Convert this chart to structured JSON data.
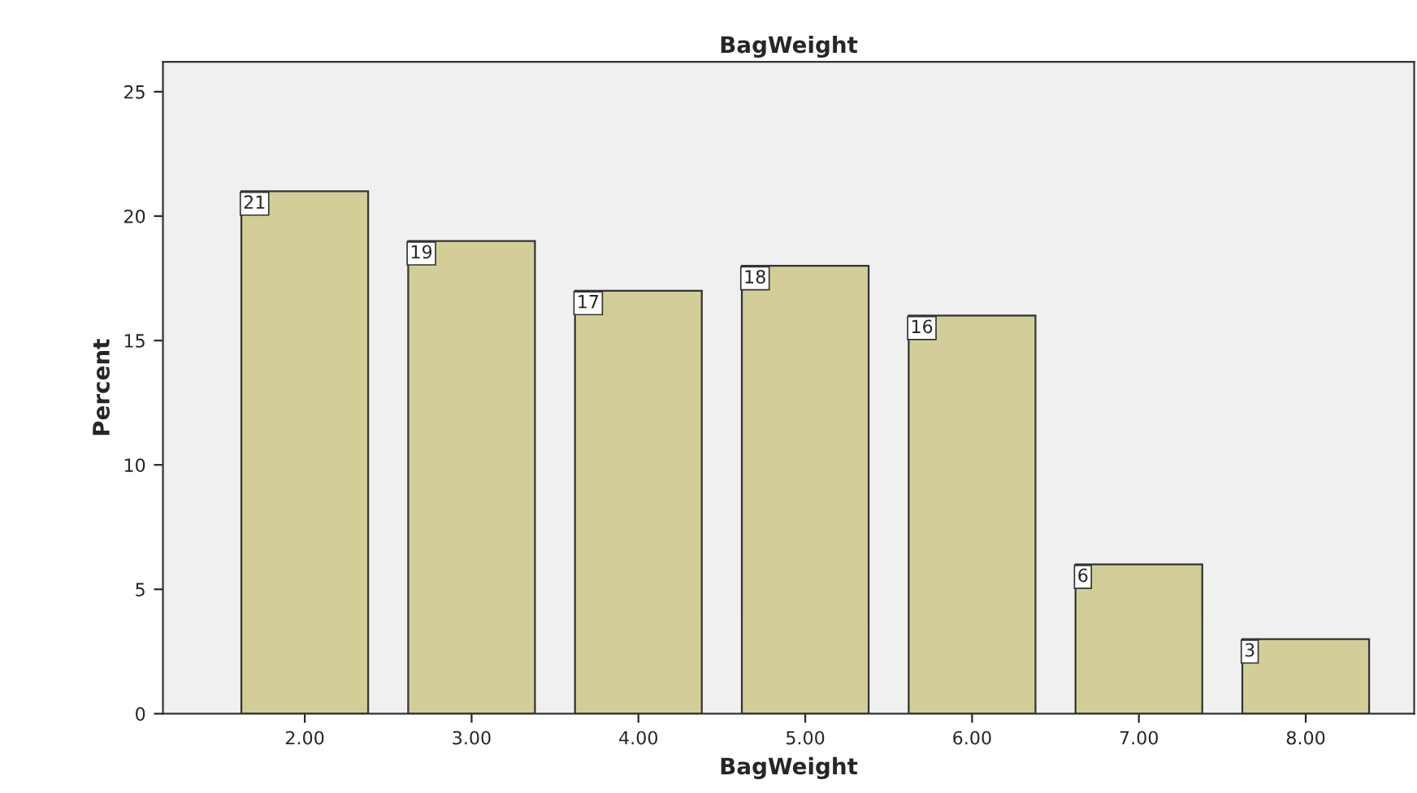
{
  "chart_data": {
    "type": "bar",
    "title": "BagWeight",
    "xlabel": "BagWeight",
    "ylabel": "Percent",
    "categories": [
      "2.00",
      "3.00",
      "4.00",
      "5.00",
      "6.00",
      "7.00",
      "8.00"
    ],
    "values": [
      21,
      19,
      17,
      18,
      16,
      6,
      3
    ],
    "color": "#d3ce97",
    "ylim": [
      0,
      26.2
    ],
    "yticks": [
      0,
      5,
      10,
      15,
      20,
      25
    ],
    "grid": false,
    "data_labels": true
  }
}
